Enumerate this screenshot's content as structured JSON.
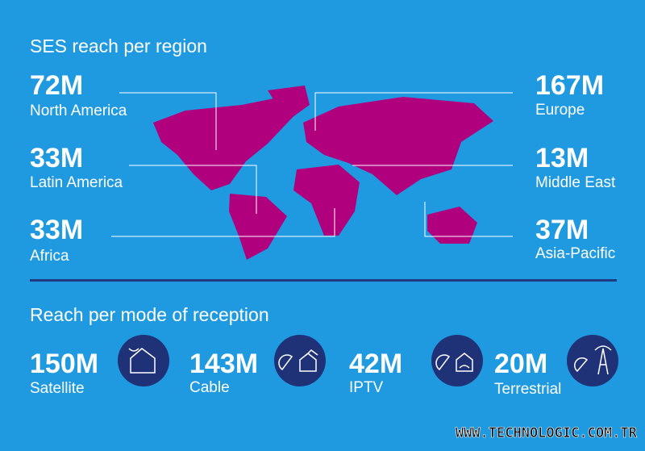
{
  "header": {
    "title": "SES reach per region"
  },
  "regions": [
    {
      "value": "72M",
      "name": "North America"
    },
    {
      "value": "33M",
      "name": "Latin America"
    },
    {
      "value": "33M",
      "name": "Africa"
    },
    {
      "value": "167M",
      "name": "Europe"
    },
    {
      "value": "13M",
      "name": "Middle East"
    },
    {
      "value": "37M",
      "name": "Asia-Pacific"
    }
  ],
  "modes": {
    "title": "Reach per mode of reception",
    "items": [
      {
        "value": "150M",
        "name": "Satellite"
      },
      {
        "value": "143M",
        "name": "Cable"
      },
      {
        "value": "42M",
        "name": "IPTV"
      },
      {
        "value": "20M",
        "name": "Terrestrial"
      }
    ]
  },
  "watermark": "WWW.TECHNOLOGIC.COM.TR"
}
